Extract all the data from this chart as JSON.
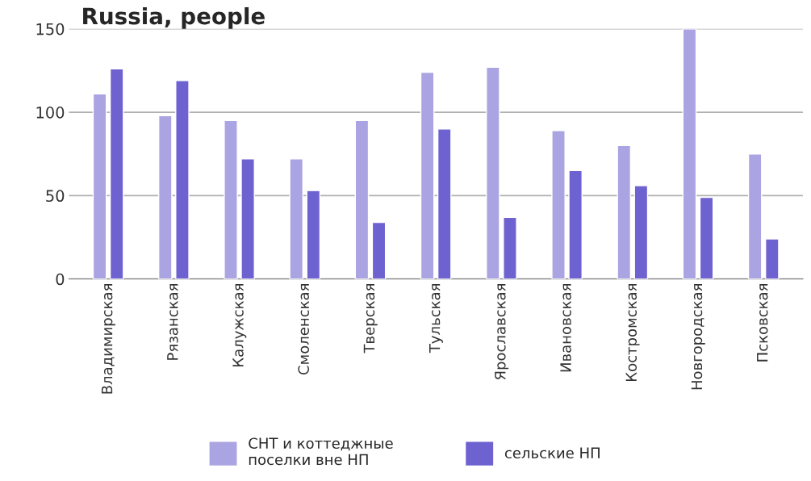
{
  "chart_data": {
    "type": "bar",
    "title": "Russia, people",
    "categories": [
      "Владимирская",
      "Рязанская",
      "Калужская",
      "Смоленская",
      "Тверская",
      "Тульская",
      "Ярославская",
      "Ивановская",
      "Костромская",
      "Новгородская",
      "Псковская"
    ],
    "series": [
      {
        "name": "СНТ и коттеджные\nпоселки вне НП",
        "color": "#aba4e2",
        "values": [
          111,
          98,
          95,
          72,
          95,
          124,
          127,
          89,
          80,
          150,
          75
        ]
      },
      {
        "name": "сельские НП",
        "color": "#6e62d0",
        "values": [
          126,
          119,
          72,
          53,
          34,
          90,
          37,
          65,
          56,
          49,
          24
        ]
      }
    ],
    "ylim": [
      0,
      150
    ],
    "yticks": [
      0,
      50,
      100,
      150
    ],
    "grid": "y",
    "legend": "bottom"
  }
}
